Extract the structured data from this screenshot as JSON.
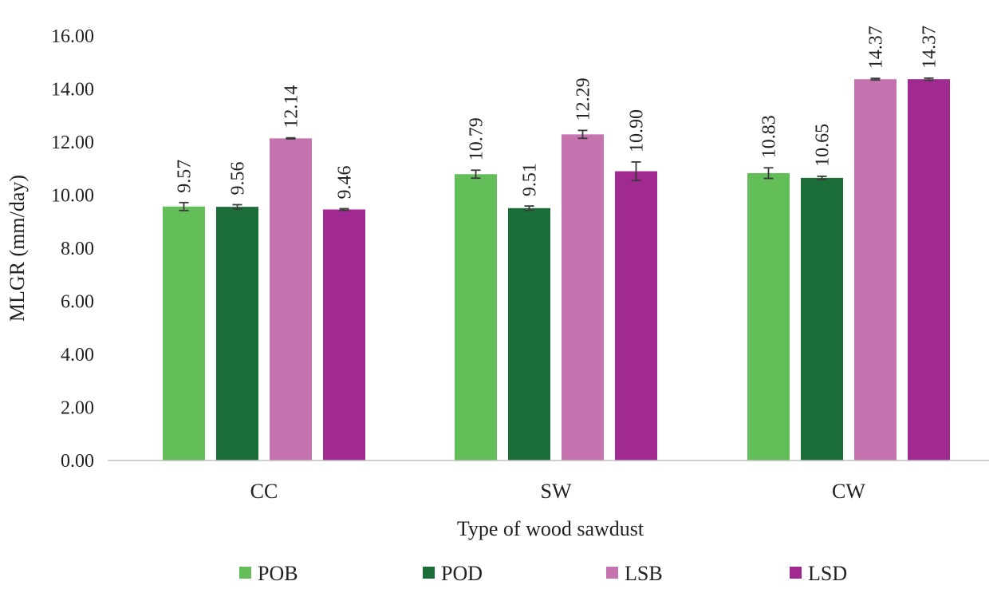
{
  "chart_data": {
    "type": "bar",
    "title": "",
    "xlabel": "Type of wood sawdust",
    "ylabel": "MLGR (mm/day)",
    "ylim": [
      0,
      16
    ],
    "ytick_step": 2,
    "ytick_labels": [
      "0.00",
      "2.00",
      "4.00",
      "6.00",
      "8.00",
      "10.00",
      "12.00",
      "14.00",
      "16.00"
    ],
    "grid": false,
    "legend_position": "bottom",
    "categories": [
      "CC",
      "SW",
      "CW"
    ],
    "series": [
      {
        "name": "POB",
        "color": "#63be5a",
        "values": [
          9.57,
          10.79,
          10.83
        ],
        "labels": [
          "9.57",
          "10.79",
          "10.83"
        ],
        "errors": [
          0.15,
          0.15,
          0.2
        ]
      },
      {
        "name": "POD",
        "color": "#1c6e38",
        "values": [
          9.56,
          9.51,
          10.65
        ],
        "labels": [
          "9.56",
          "9.51",
          "10.65"
        ],
        "errors": [
          0.08,
          0.08,
          0.06
        ]
      },
      {
        "name": "LSB",
        "color": "#c674b0",
        "values": [
          12.14,
          12.29,
          14.37
        ],
        "labels": [
          "12.14",
          "12.29",
          "14.37"
        ],
        "errors": [
          0.02,
          0.15,
          0.03
        ]
      },
      {
        "name": "LSD",
        "color": "#a02a90",
        "values": [
          9.46,
          10.9,
          14.37
        ],
        "labels": [
          "9.46",
          "10.90",
          "14.37"
        ],
        "errors": [
          0.03,
          0.35,
          0.04
        ]
      }
    ]
  }
}
